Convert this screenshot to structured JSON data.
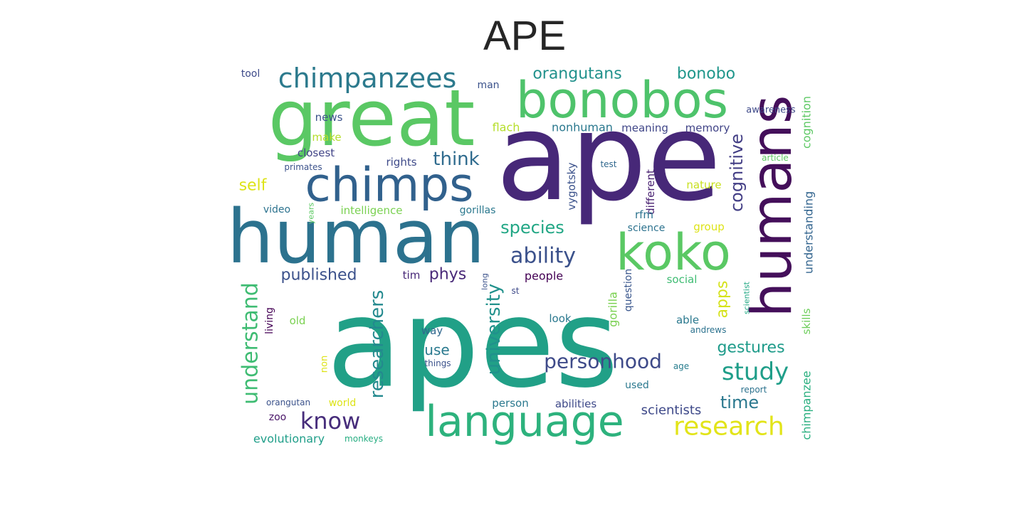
{
  "title": "APE",
  "words": [
    {
      "text": "apes",
      "color": "#21a087"
    },
    {
      "text": "ape",
      "color": "#472878"
    },
    {
      "text": "human",
      "color": "#2c728e"
    },
    {
      "text": "great",
      "color": "#5ac864"
    },
    {
      "text": "humans",
      "color": "#440f5a"
    },
    {
      "text": "bonobos",
      "color": "#4ec36b"
    },
    {
      "text": "chimps",
      "color": "#31618d"
    },
    {
      "text": "koko",
      "color": "#5ac864"
    },
    {
      "text": "language",
      "color": "#2db27d"
    },
    {
      "text": "chimpanzees",
      "color": "#2c7a8d"
    },
    {
      "text": "understand",
      "color": "#3fbc73"
    },
    {
      "text": "researchers",
      "color": "#23898e"
    },
    {
      "text": "research",
      "color": "#e2e419"
    },
    {
      "text": "study",
      "color": "#1f9e89"
    },
    {
      "text": "ability",
      "color": "#3b518b"
    },
    {
      "text": "personhood",
      "color": "#3e4a89"
    },
    {
      "text": "know",
      "color": "#472d7b"
    },
    {
      "text": "university",
      "color": "#21918c"
    },
    {
      "text": "cognitive",
      "color": "#433e85"
    },
    {
      "text": "think",
      "color": "#2f6b8e"
    },
    {
      "text": "species",
      "color": "#22a785"
    },
    {
      "text": "gestures",
      "color": "#1e9b8a"
    },
    {
      "text": "time",
      "color": "#2a788e"
    },
    {
      "text": "orangutans",
      "color": "#21918c"
    },
    {
      "text": "bonobo",
      "color": "#1f968b"
    },
    {
      "text": "published",
      "color": "#3b518b"
    },
    {
      "text": "phys",
      "color": "#482878"
    },
    {
      "text": "self",
      "color": "#dde318"
    },
    {
      "text": "apps",
      "color": "#d5e21a"
    },
    {
      "text": "use",
      "color": "#29798e"
    },
    {
      "text": "scientists",
      "color": "#3e4989"
    },
    {
      "text": "chimpanzee",
      "color": "#29af7f"
    },
    {
      "text": "understanding",
      "color": "#32648e"
    },
    {
      "text": "cognition",
      "color": "#5cc863"
    },
    {
      "text": "gorilla",
      "color": "#7ad151"
    },
    {
      "text": "evolutionary",
      "color": "#1f9e89"
    },
    {
      "text": "intelligence",
      "color": "#7ad151"
    },
    {
      "text": "nonhuman",
      "color": "#2a788e"
    },
    {
      "text": "flach",
      "color": "#b5de2b"
    },
    {
      "text": "meaning",
      "color": "#404688"
    },
    {
      "text": "memory",
      "color": "#414487"
    },
    {
      "text": "rights",
      "color": "#3e4a89"
    },
    {
      "text": "vygotsky",
      "color": "#3b528b"
    },
    {
      "text": "different",
      "color": "#482071"
    },
    {
      "text": "person",
      "color": "#2a788e"
    },
    {
      "text": "abilities",
      "color": "#3e4989"
    },
    {
      "text": "people",
      "color": "#440154"
    },
    {
      "text": "nature",
      "color": "#c8e020"
    },
    {
      "text": "closest",
      "color": "#414487"
    },
    {
      "text": "make",
      "color": "#b5de2b"
    },
    {
      "text": "news",
      "color": "#3b528b"
    },
    {
      "text": "gorillas",
      "color": "#2a788e"
    },
    {
      "text": "rfm",
      "color": "#2c728e"
    },
    {
      "text": "group",
      "color": "#dde318"
    },
    {
      "text": "science",
      "color": "#2c728e"
    },
    {
      "text": "social",
      "color": "#3fbc73"
    },
    {
      "text": "skills",
      "color": "#6ccd5a"
    },
    {
      "text": "question",
      "color": "#39568c"
    },
    {
      "text": "video",
      "color": "#2c728e"
    },
    {
      "text": "way",
      "color": "#31688e"
    },
    {
      "text": "tim",
      "color": "#482878"
    },
    {
      "text": "look",
      "color": "#2a788e"
    },
    {
      "text": "able",
      "color": "#2a788e"
    },
    {
      "text": "old",
      "color": "#7ad151"
    },
    {
      "text": "zoo",
      "color": "#481467"
    },
    {
      "text": "world",
      "color": "#dde318"
    },
    {
      "text": "used",
      "color": "#2a788e"
    },
    {
      "text": "living",
      "color": "#440154"
    },
    {
      "text": "man",
      "color": "#3b528b"
    },
    {
      "text": "tool",
      "color": "#3e4a89"
    },
    {
      "text": "primates",
      "color": "#3b528b"
    },
    {
      "text": "awareness",
      "color": "#3e4989"
    },
    {
      "text": "test",
      "color": "#31688e"
    },
    {
      "text": "article",
      "color": "#5ec962"
    },
    {
      "text": "scientist",
      "color": "#22a884"
    },
    {
      "text": "andrews",
      "color": "#2c728e"
    },
    {
      "text": "report",
      "color": "#2c728e"
    },
    {
      "text": "orangutan",
      "color": "#3b528b"
    },
    {
      "text": "monkeys",
      "color": "#26ad81"
    },
    {
      "text": "things",
      "color": "#3b528b"
    },
    {
      "text": "non",
      "color": "#dde318"
    },
    {
      "text": "age",
      "color": "#287d8e"
    },
    {
      "text": "st",
      "color": "#3e4a89"
    },
    {
      "text": "long",
      "color": "#3b528b"
    },
    {
      "text": "years",
      "color": "#5cc863"
    }
  ]
}
